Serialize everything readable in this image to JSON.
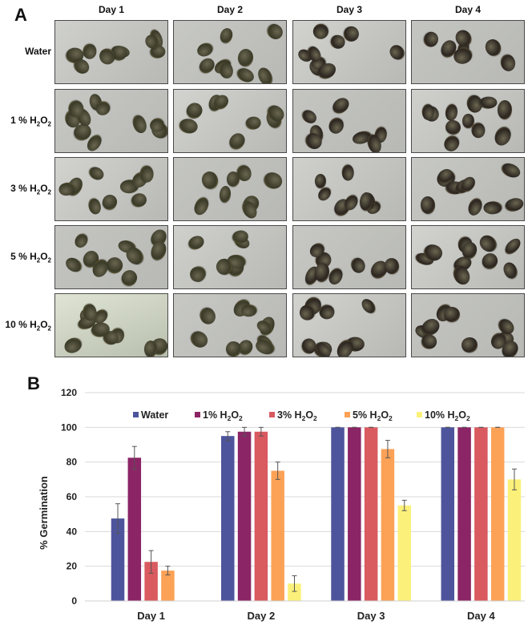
{
  "panel_a": {
    "letter": "A",
    "columns": [
      "Day 1",
      "Day 2",
      "Day 3",
      "Day 4"
    ],
    "rows": [
      {
        "label": "Water",
        "base": "",
        "sub1": "",
        "sub2": ""
      },
      {
        "label": "1 % H",
        "base": "O",
        "sub1": "2",
        "sub2": "2"
      },
      {
        "label": "3 % H",
        "base": "O",
        "sub1": "2",
        "sub2": "2"
      },
      {
        "label": "5 % H",
        "base": "O",
        "sub1": "2",
        "sub2": "2"
      },
      {
        "label": "10 % H",
        "base": "O",
        "sub1": "2",
        "sub2": "2"
      }
    ],
    "photo_description": "Photographs of hemp seeds in petri dishes under each treatment per day"
  },
  "panel_b": {
    "letter": "B"
  },
  "chart_data": {
    "type": "bar",
    "title": "",
    "xlabel": "",
    "ylabel": "% Germination",
    "ylim": [
      0,
      120
    ],
    "yticks": [
      0,
      20,
      40,
      60,
      80,
      100,
      120
    ],
    "grid": true,
    "legend_position": "top",
    "categories": [
      "Day 1",
      "Day 2",
      "Day 3",
      "Day 4"
    ],
    "series": [
      {
        "name": "Water",
        "label_main": "Water",
        "label_sub": "",
        "color": "#4e549c",
        "values": [
          47.5,
          95,
          100,
          100
        ],
        "errors": [
          8.5,
          2.5,
          0,
          0
        ]
      },
      {
        "name": "1% H2O2",
        "label_main": "1% H",
        "label_sub": "2",
        "color": "#8b2565",
        "values": [
          82.5,
          97.5,
          100,
          100
        ],
        "errors": [
          6.5,
          2.5,
          0,
          0
        ]
      },
      {
        "name": "3% H2O2",
        "label_main": "3% H",
        "label_sub": "2",
        "color": "#d95a5f",
        "values": [
          22.5,
          97.5,
          100,
          100
        ],
        "errors": [
          6.5,
          2.5,
          0,
          0
        ]
      },
      {
        "name": "5% H2O2",
        "label_main": "5% H",
        "label_sub": "2",
        "color": "#fba257",
        "values": [
          17.5,
          75,
          87.5,
          100
        ],
        "errors": [
          2.5,
          5,
          5,
          0
        ]
      },
      {
        "name": "10% H2O2",
        "label_main": "10% H",
        "label_sub": "2",
        "color": "#fbf17a",
        "values": [
          0,
          10,
          55,
          70
        ],
        "errors": [
          0,
          4.5,
          3,
          6
        ]
      }
    ]
  }
}
